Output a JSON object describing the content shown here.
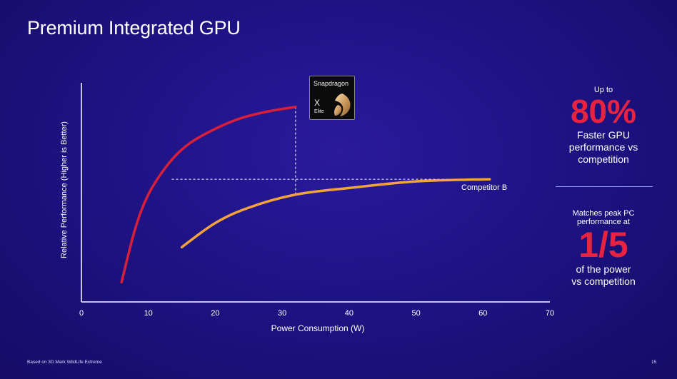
{
  "slide": {
    "title": "Premium Integrated GPU",
    "footnote": "Based on 3D Mark WildLife Extreme",
    "page_number": "15"
  },
  "logo": {
    "brand": "Snapdragon",
    "model": "X",
    "variant": "Elite"
  },
  "callouts": {
    "first": {
      "prefix": "Up to",
      "value": "80%",
      "text_lines": [
        "Faster GPU",
        "performance vs",
        "competition"
      ]
    },
    "second": {
      "prefix_lines": [
        "Matches peak PC",
        "performance at"
      ],
      "value": "1/5",
      "text_lines": [
        "of the power",
        "vs competition"
      ]
    }
  },
  "colors": {
    "background": "#1e1385",
    "snapdragon_curve": "#d81f3a",
    "competitor_curve": "#f4a23a",
    "highlight_red": "#e8233f"
  },
  "chart_data": {
    "type": "line",
    "xlabel": "Power Consumption (W)",
    "ylabel": "Relative Performance  (Higher is Better)",
    "xlim": [
      0,
      70
    ],
    "ylim": [
      0,
      1
    ],
    "xticks": [
      "0",
      "10",
      "20",
      "30",
      "40",
      "50",
      "60",
      "70"
    ],
    "yticks_shown": false,
    "grid": false,
    "series": [
      {
        "name": "",
        "color": "#d81f3a",
        "x": [
          6,
          8,
          10,
          13,
          16,
          20,
          24,
          28,
          32
        ],
        "y": [
          0.09,
          0.33,
          0.49,
          0.63,
          0.72,
          0.79,
          0.84,
          0.87,
          0.89
        ]
      },
      {
        "name": "Competitor B",
        "color": "#f4a23a",
        "x": [
          15,
          20,
          25,
          32,
          40,
          50,
          61
        ],
        "y": [
          0.25,
          0.36,
          0.43,
          0.49,
          0.52,
          0.55,
          0.56
        ]
      }
    ],
    "reference_lines": [
      {
        "orientation": "vertical",
        "x": 32,
        "y_from": 0.49,
        "y_to": 0.89
      },
      {
        "orientation": "horizontal",
        "y": 0.56,
        "x_from": 13.5,
        "x_to": 61
      }
    ]
  }
}
